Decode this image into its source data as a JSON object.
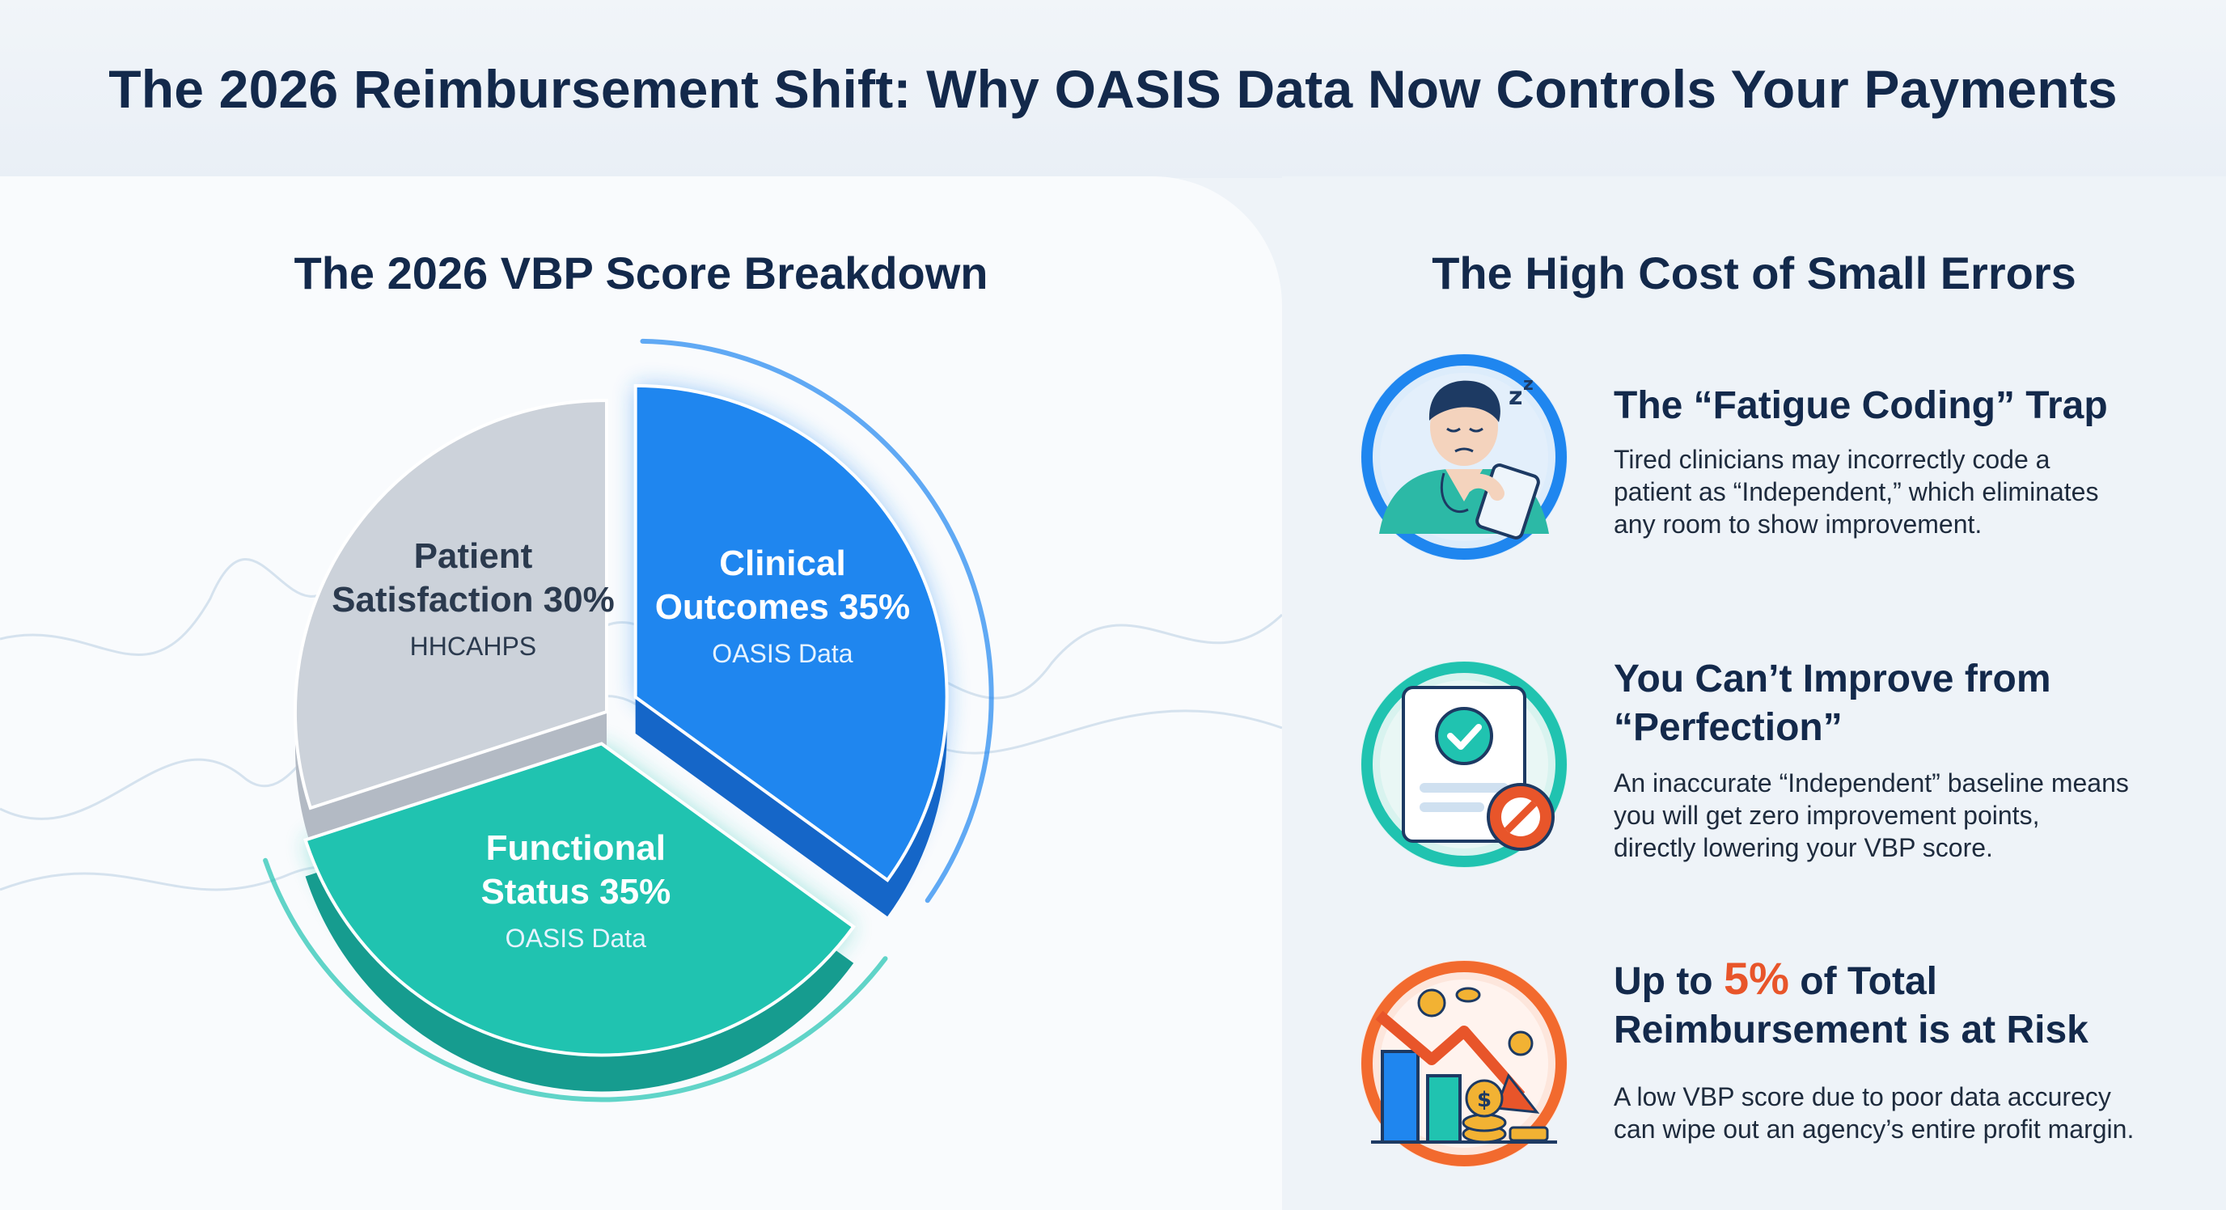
{
  "title": "The 2026 Reimbursement Shift: Why OASIS Data Now Controls Your Payments",
  "left_section_title": "The 2026 VBP Score Breakdown",
  "right_section_title": "The High Cost of Small Errors",
  "chart_data": {
    "type": "pie",
    "title": "The 2026 VBP Score Breakdown",
    "slices": [
      {
        "name": "Clinical Outcomes",
        "value": 35,
        "label": "Clinical Outcomes 35%",
        "line1": "Clinical",
        "line2": "Outcomes 35%",
        "sublabel": "OASIS Data",
        "color": "#1f86ef",
        "side_color": "#1566c8"
      },
      {
        "name": "Functional Status",
        "value": 35,
        "label": "Functional Status 35%",
        "line1": "Functional",
        "line2": "Status 35%",
        "sublabel": "OASIS Data",
        "color": "#20c3b0",
        "side_color": "#169c8f"
      },
      {
        "name": "Patient Satisfaction",
        "value": 30,
        "label": "Patient Satisfaction 30%",
        "line1": "Patient",
        "line2": "Satisfaction 30%",
        "sublabel": "HHCAHPS",
        "color": "#ccd2da",
        "side_color": "#b3bac4"
      }
    ],
    "legend": "none",
    "grid": false
  },
  "cards": [
    {
      "icon": "tired-clinician-icon",
      "title": "The “Fatigue Coding” Trap",
      "body_lines": [
        "Tired clinicians may incorrectly code a",
        "patient as “Independent,” which eliminates",
        "any room to show improvement."
      ],
      "ring_color": "#1f86ef"
    },
    {
      "icon": "checklist-blocked-icon",
      "title_lines": [
        "You Can’t Improve from",
        "“Perfection”"
      ],
      "body_lines": [
        "An inaccurate “Independent” baseline means",
        "you will get zero improvement points,",
        "directly lowering your VBP score."
      ],
      "ring_color": "#20c3b0"
    },
    {
      "icon": "declining-revenue-icon",
      "title_prefix": "Up to ",
      "title_accent": "5%",
      "title_suffix": " of Total",
      "title_line2": "Reimbursement is at Risk",
      "body_lines": [
        "A low VBP score due to poor data accurecy",
        "can wipe out an agency’s entire profit margin."
      ],
      "ring_color": "#f26a2e",
      "accent_color": "#e8552a"
    }
  ]
}
